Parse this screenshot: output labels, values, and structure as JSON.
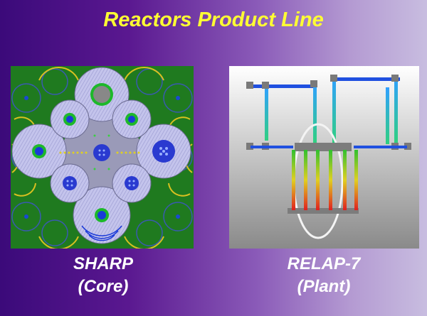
{
  "slide": {
    "title": "Reactors Product Line"
  },
  "left": {
    "name": "SHARP",
    "subtitle": "(Core)"
  },
  "right": {
    "name": "RELAP-7",
    "subtitle": "(Plant)"
  },
  "colors": {
    "title": "#ffff33",
    "caption": "#ffffff",
    "core_background": "#1f7a1f",
    "assembly_fill": "#b8b8e6"
  }
}
